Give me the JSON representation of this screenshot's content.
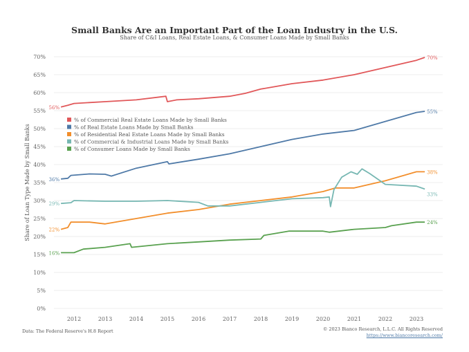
{
  "chart_data": {
    "type": "line",
    "title": "Small Banks Are an Important Part of the Loan Industry in the U.S.",
    "subtitle": "Share of C&I Loans, Real Estate Loans, & Consumer Loans Made by Small Banks",
    "ylabel": "Share of Loan Type Made by Small Banks",
    "xlabel": "",
    "ylim": [
      0,
      70
    ],
    "yticks": [
      "0%",
      "5%",
      "10%",
      "15%",
      "20%",
      "25%",
      "30%",
      "35%",
      "40%",
      "45%",
      "50%",
      "55%",
      "60%",
      "65%",
      "70%"
    ],
    "xticks": [
      "2012",
      "2013",
      "2014",
      "2015",
      "2016",
      "2017",
      "2018",
      "2019",
      "2020",
      "2021",
      "2022",
      "2023"
    ],
    "grid": "horizontal",
    "legend_position": "upper-left",
    "series": [
      {
        "name": "% of Commercial Real Estate Loans Made by Small Banks",
        "color": "#e15759",
        "start_label": "56%",
        "end_label": "70%",
        "points": [
          [
            2011.58,
            56
          ],
          [
            2011.8,
            56.5
          ],
          [
            2012,
            57
          ],
          [
            2013,
            57.5
          ],
          [
            2014,
            58
          ],
          [
            2014.95,
            59
          ],
          [
            2015.0,
            57.5
          ],
          [
            2015.3,
            58
          ],
          [
            2016,
            58.3
          ],
          [
            2017,
            59
          ],
          [
            2017.5,
            59.8
          ],
          [
            2018,
            61
          ],
          [
            2019,
            62.5
          ],
          [
            2020,
            63.5
          ],
          [
            2021,
            65
          ],
          [
            2022,
            67
          ],
          [
            2023,
            69
          ],
          [
            2023.27,
            69.8
          ]
        ]
      },
      {
        "name": "% of Real Estate Loans Made by Small Banks",
        "color": "#4e79a7",
        "start_label": "36%",
        "end_label": "55%",
        "points": [
          [
            2011.58,
            36
          ],
          [
            2011.8,
            36.2
          ],
          [
            2011.9,
            37
          ],
          [
            2012.5,
            37.4
          ],
          [
            2013,
            37.3
          ],
          [
            2013.2,
            36.8
          ],
          [
            2014,
            39
          ],
          [
            2015,
            40.8
          ],
          [
            2015.05,
            40.2
          ],
          [
            2016,
            41.5
          ],
          [
            2017,
            43
          ],
          [
            2018,
            45
          ],
          [
            2019,
            47
          ],
          [
            2020,
            48.5
          ],
          [
            2021,
            49.5
          ],
          [
            2022,
            52
          ],
          [
            2023,
            54.5
          ],
          [
            2023.27,
            54.8
          ]
        ]
      },
      {
        "name": "% of Residential Real Estate Loans Made by Small Banks",
        "color": "#f28e2b",
        "start_label": "22%",
        "end_label": "38%",
        "points": [
          [
            2011.58,
            22
          ],
          [
            2011.8,
            22.5
          ],
          [
            2011.9,
            24
          ],
          [
            2012.5,
            24
          ],
          [
            2013,
            23.5
          ],
          [
            2014,
            25
          ],
          [
            2015,
            26.5
          ],
          [
            2016,
            27.5
          ],
          [
            2017,
            29
          ],
          [
            2018,
            30
          ],
          [
            2019,
            31
          ],
          [
            2020,
            32.5
          ],
          [
            2020.4,
            33.5
          ],
          [
            2021,
            33.5
          ],
          [
            2022,
            35.5
          ],
          [
            2023,
            38
          ],
          [
            2023.27,
            38
          ]
        ]
      },
      {
        "name": "% of Commercial & Industrial Loans Made by Small Banks",
        "color": "#76b7b2",
        "start_label": "29%",
        "end_label": "33%",
        "points": [
          [
            2011.58,
            29.2
          ],
          [
            2011.9,
            29.4
          ],
          [
            2012,
            30
          ],
          [
            2013,
            29.8
          ],
          [
            2014,
            29.8
          ],
          [
            2015,
            30
          ],
          [
            2016,
            29.5
          ],
          [
            2016.3,
            28.5
          ],
          [
            2017,
            28.5
          ],
          [
            2018,
            29.5
          ],
          [
            2019,
            30.5
          ],
          [
            2020,
            30.8
          ],
          [
            2020.2,
            31
          ],
          [
            2020.24,
            28.3
          ],
          [
            2020.35,
            33
          ],
          [
            2020.6,
            36.5
          ],
          [
            2020.9,
            38
          ],
          [
            2021.1,
            37.3
          ],
          [
            2021.25,
            38.8
          ],
          [
            2021.5,
            37.5
          ],
          [
            2022,
            34.5
          ],
          [
            2023,
            34
          ],
          [
            2023.27,
            33.2
          ]
        ]
      },
      {
        "name": "% of Consumer Loans Made by Small Banks",
        "color": "#59a14f",
        "start_label": "16%",
        "end_label": "24%",
        "points": [
          [
            2011.58,
            15.5
          ],
          [
            2012,
            15.5
          ],
          [
            2012.3,
            16.5
          ],
          [
            2013,
            17
          ],
          [
            2013.8,
            18
          ],
          [
            2013.85,
            17
          ],
          [
            2015,
            18
          ],
          [
            2016,
            18.5
          ],
          [
            2017,
            19
          ],
          [
            2018,
            19.3
          ],
          [
            2018.1,
            20.3
          ],
          [
            2018.9,
            21.5
          ],
          [
            2020,
            21.5
          ],
          [
            2020.2,
            21.2
          ],
          [
            2021,
            22
          ],
          [
            2022,
            22.5
          ],
          [
            2022.2,
            23
          ],
          [
            2023,
            24
          ],
          [
            2023.27,
            24
          ]
        ]
      }
    ]
  },
  "footer": {
    "source": "Data: The Federal Reserve's H.8 Report",
    "copyright": "© 2023 Bianco Research, L.L.C. All Rights Reserved",
    "url": "https://www.biancoresearch.com/"
  }
}
